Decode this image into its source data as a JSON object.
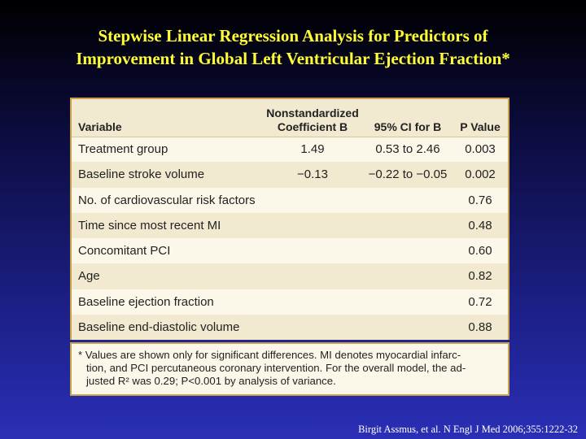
{
  "title": {
    "line1": "Stepwise Linear Regression Analysis for Predictors of",
    "line2": "Improvement in Global Left Ventricular Ejection Fraction*"
  },
  "table": {
    "headers": {
      "variable": "Variable",
      "coef_line1": "Nonstandardized",
      "coef_line2": "Coefficient B",
      "ci": "95% CI for B",
      "p": "P Value"
    },
    "rows": [
      {
        "variable": "Treatment group",
        "coef": "1.49",
        "ci": "0.53 to 2.46",
        "p": "0.003"
      },
      {
        "variable": "Baseline stroke volume",
        "coef": "−0.13",
        "ci": "−0.22 to −0.05",
        "p": "0.002"
      },
      {
        "variable": "No. of cardiovascular risk factors",
        "coef": "",
        "ci": "",
        "p": "0.76"
      },
      {
        "variable": "Time since most recent MI",
        "coef": "",
        "ci": "",
        "p": "0.48"
      },
      {
        "variable": "Concomitant PCI",
        "coef": "",
        "ci": "",
        "p": "0.60"
      },
      {
        "variable": "Age",
        "coef": "",
        "ci": "",
        "p": "0.82"
      },
      {
        "variable": "Baseline ejection fraction",
        "coef": "",
        "ci": "",
        "p": "0.72"
      },
      {
        "variable": "Baseline end-diastolic volume",
        "coef": "",
        "ci": "",
        "p": "0.88"
      }
    ]
  },
  "footnote": {
    "line1": "* Values are shown only for significant differences. MI denotes myocardial infarc-",
    "line2": "tion, and PCI percutaneous coronary intervention. For the overall model, the ad-",
    "line3": "justed R² was 0.29; P<0.001 by analysis of variance."
  },
  "citation": "Birgit Assmus, et al. N Engl J Med 2006;355:1222-32",
  "colors": {
    "title": "#ffff33",
    "table_bg": "#fbf8ea",
    "table_alt": "#f1ead0",
    "border": "#c9a34a"
  }
}
